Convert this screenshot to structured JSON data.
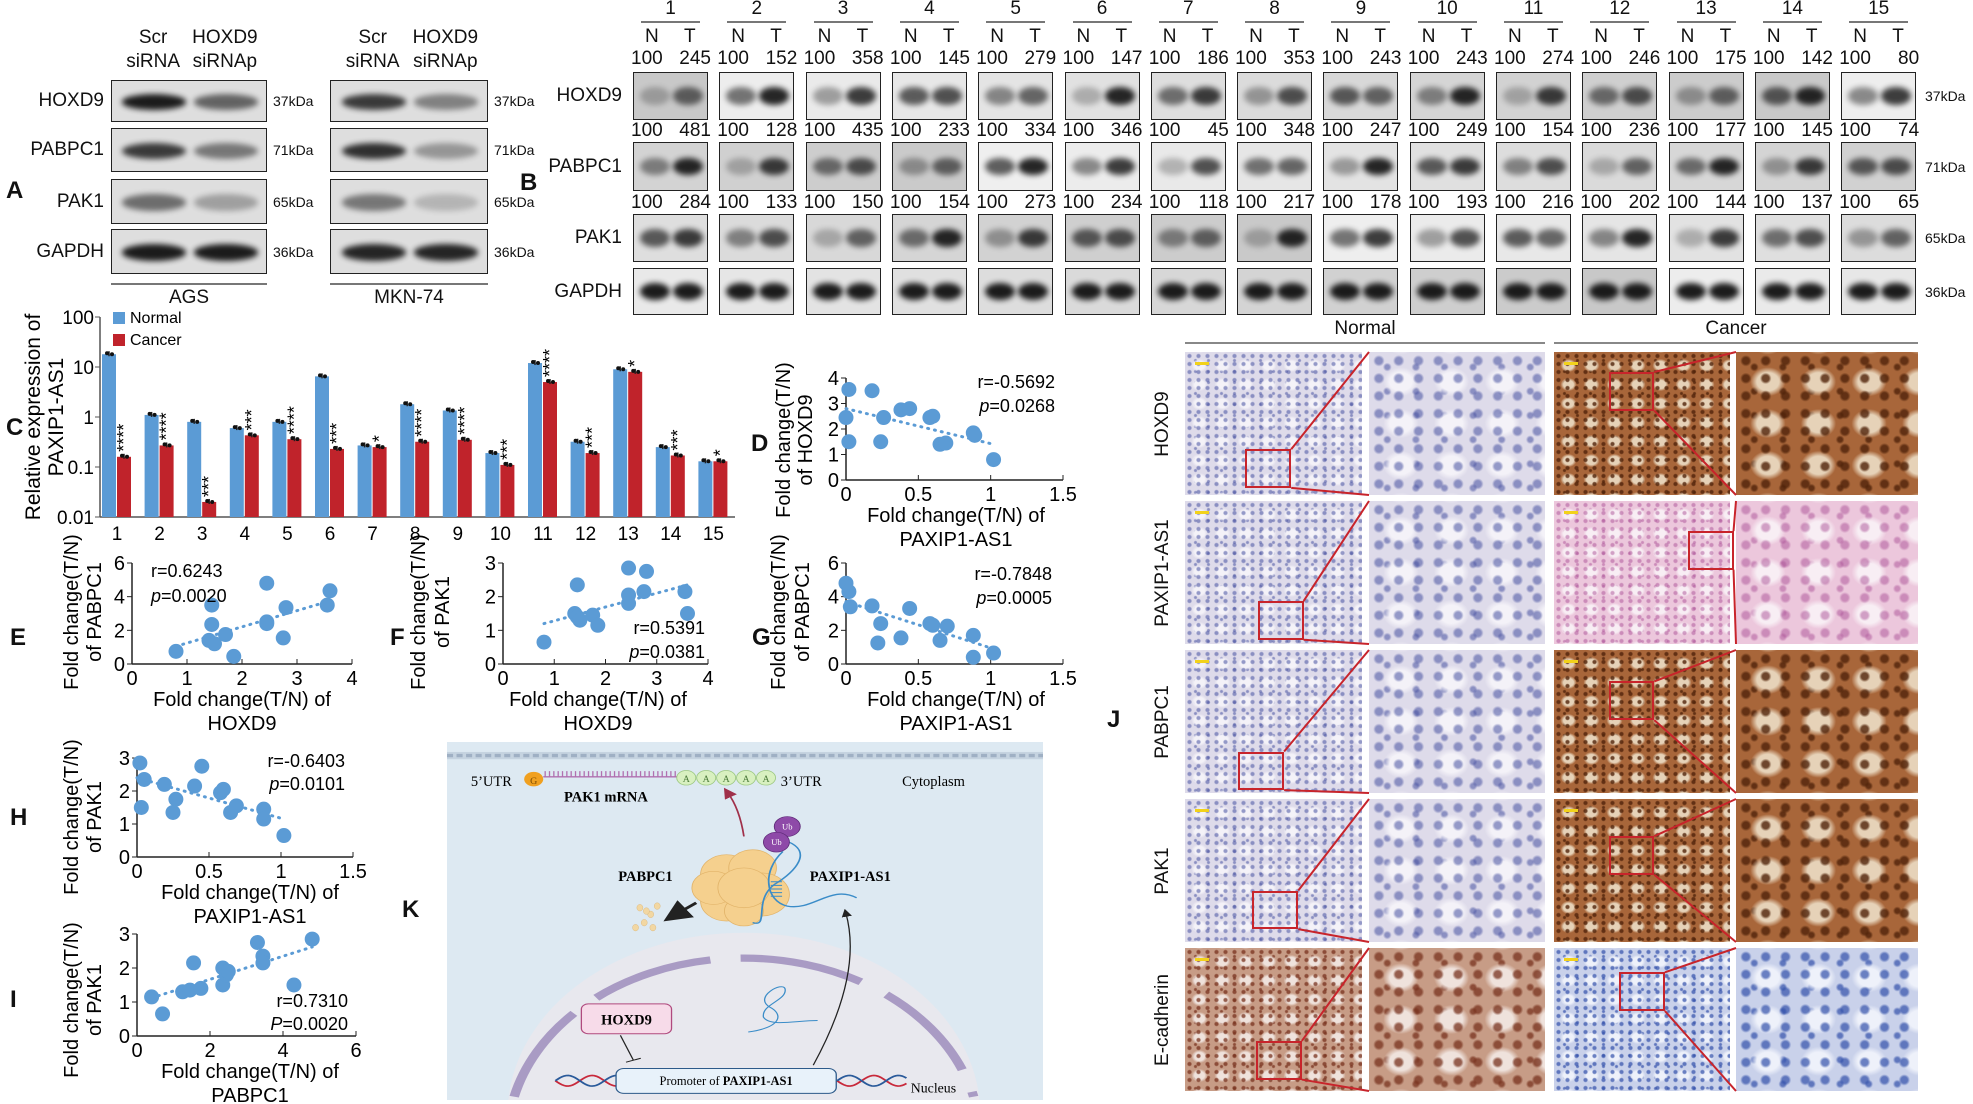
{
  "panel_letters": {
    "A": "A",
    "B": "B",
    "C": "C",
    "D": "D",
    "E": "E",
    "F": "F",
    "G": "G",
    "H": "H",
    "I": "I",
    "J": "J",
    "K": "K"
  },
  "panel_a": {
    "groups": [
      {
        "cell_line": "AGS",
        "columns": [
          {
            "line1": "Scr",
            "line2": "siRNA"
          },
          {
            "line1": "HOXD9",
            "line2": "siRNAp"
          }
        ]
      },
      {
        "cell_line": "MKN-74",
        "columns": [
          {
            "line1": "Scr",
            "line2": "siRNA"
          },
          {
            "line1": "HOXD9",
            "line2": "siRNAp"
          }
        ]
      }
    ],
    "rows": [
      {
        "label": "HOXD9",
        "kda": "37kDa"
      },
      {
        "label": "PABPC1",
        "kda": "71kDa"
      },
      {
        "label": "PAK1",
        "kda": "65kDa"
      },
      {
        "label": "GAPDH",
        "kda": "36kDa"
      }
    ]
  },
  "panel_b": {
    "lanes": [
      "1",
      "2",
      "3",
      "4",
      "5",
      "6",
      "7",
      "8",
      "9",
      "10",
      "11",
      "12",
      "13",
      "14",
      "15"
    ],
    "lane_sub": [
      "N",
      "T"
    ],
    "rows": [
      {
        "label": "HOXD9",
        "kda": "37kDa",
        "normal": "100",
        "tumor": [
          "245",
          "152",
          "358",
          "145",
          "279",
          "147",
          "186",
          "353",
          "243",
          "243",
          "274",
          "246",
          "175",
          "142",
          "80"
        ]
      },
      {
        "label": "PABPC1",
        "kda": "71kDa",
        "normal": "100",
        "tumor": [
          "481",
          "128",
          "435",
          "233",
          "334",
          "346",
          "45",
          "348",
          "247",
          "249",
          "154",
          "236",
          "177",
          "145",
          "74"
        ]
      },
      {
        "label": "PAK1",
        "kda": "65kDa",
        "normal": "100",
        "tumor": [
          "284",
          "133",
          "150",
          "154",
          "273",
          "234",
          "118",
          "217",
          "178",
          "193",
          "216",
          "202",
          "144",
          "137",
          "65"
        ]
      },
      {
        "label": "GAPDH",
        "kda": "36kDa"
      }
    ]
  },
  "chart_data": [
    {
      "panel": "C",
      "type": "bar",
      "categories": [
        "1",
        "2",
        "3",
        "4",
        "5",
        "6",
        "7",
        "8",
        "9",
        "10",
        "11",
        "12",
        "13",
        "14",
        "15"
      ],
      "series": [
        {
          "name": "Normal",
          "color": "#5b9bd5",
          "values": [
            18,
            1.1,
            0.8,
            0.6,
            0.8,
            6.5,
            0.27,
            1.8,
            1.35,
            0.19,
            12,
            0.32,
            9,
            0.25,
            0.13
          ]
        },
        {
          "name": "Cancer",
          "color": "#c0232b",
          "values": [
            0.16,
            0.27,
            0.02,
            0.43,
            0.36,
            0.23,
            0.25,
            0.32,
            0.35,
            0.11,
            5,
            0.19,
            8,
            0.17,
            0.13
          ]
        }
      ],
      "significance": [
        "****",
        "****",
        "***",
        "***",
        "****",
        "***",
        "*",
        "****",
        "****",
        "***",
        "****",
        "***",
        "*",
        "***",
        "*"
      ],
      "ylabel_lines": [
        "Relative expression of",
        "PAXIP1-AS1"
      ],
      "yscale": "log",
      "ylim": [
        0.01,
        100
      ],
      "yticks": [
        "0.01",
        "0.1",
        "1",
        "10",
        "100"
      ],
      "legend": "top-left"
    },
    {
      "panel": "D",
      "type": "scatter",
      "color": "#5b9bd5",
      "x": [
        0.02,
        0.18,
        0.0,
        0.26,
        0.38,
        0.44,
        0.58,
        0.6,
        0.02,
        0.24,
        0.65,
        0.69,
        0.88,
        0.89,
        1.02
      ],
      "y": [
        3.55,
        3.5,
        2.45,
        2.45,
        2.75,
        2.8,
        2.45,
        2.5,
        1.5,
        1.5,
        1.4,
        1.45,
        1.85,
        1.75,
        0.8
      ],
      "trendline": {
        "x": [
          0,
          1.02
        ],
        "y": [
          2.8,
          1.4
        ]
      },
      "xlim": [
        0,
        1.5
      ],
      "ylim": [
        0,
        4
      ],
      "xticks": [
        "0",
        "0.5",
        "1",
        "1.5"
      ],
      "yticks": [
        "0",
        "1",
        "2",
        "3",
        "4"
      ],
      "xlabel_lines": [
        "Fold change(T/N) of",
        "PAXIP1-AS1"
      ],
      "ylabel_lines": [
        "Fold change(T/N)",
        "of  HOXD9"
      ],
      "r": "r=-0.5692",
      "p_label": "p",
      "p_value": "=0.0268"
    },
    {
      "panel": "E",
      "type": "scatter",
      "color": "#5b9bd5",
      "x": [
        0.8,
        1.45,
        1.45,
        1.4,
        1.5,
        1.7,
        1.85,
        2.45,
        2.45,
        2.45,
        2.75,
        2.8,
        3.55,
        3.6
      ],
      "y": [
        0.75,
        3.5,
        2.35,
        1.4,
        1.2,
        1.75,
        0.45,
        4.8,
        2.5,
        2.4,
        1.55,
        3.35,
        3.5,
        4.35
      ],
      "trendline": {
        "x": [
          0.8,
          3.6
        ],
        "y": [
          1.05,
          3.75
        ]
      },
      "xlim": [
        0,
        4
      ],
      "ylim": [
        0,
        6
      ],
      "xticks": [
        "0",
        "1",
        "2",
        "3",
        "4"
      ],
      "yticks": [
        "0",
        "2",
        "4",
        "6"
      ],
      "xlabel_lines": [
        "Fold change(T/N) of",
        "HOXD9"
      ],
      "ylabel_lines": [
        "Fold change(T/N)",
        "of  PABPC1"
      ],
      "r": "r=0.6243",
      "p_label": "p",
      "p_value": "=0.0020"
    },
    {
      "panel": "F",
      "type": "scatter",
      "color": "#5b9bd5",
      "x": [
        0.8,
        1.45,
        1.4,
        1.45,
        1.5,
        1.75,
        1.85,
        2.45,
        2.45,
        2.45,
        2.75,
        2.8,
        3.55,
        3.6
      ],
      "y": [
        0.65,
        2.35,
        1.5,
        1.4,
        1.3,
        1.45,
        1.15,
        2.85,
        2.05,
        1.8,
        2.15,
        2.75,
        2.15,
        1.5
      ],
      "trendline": {
        "x": [
          0.8,
          3.6
        ],
        "y": [
          1.2,
          2.35
        ]
      },
      "xlim": [
        0,
        4
      ],
      "ylim": [
        0,
        3
      ],
      "xticks": [
        "0",
        "1",
        "2",
        "3",
        "4"
      ],
      "yticks": [
        "0",
        "1",
        "2",
        "3"
      ],
      "xlabel_lines": [
        "Fold change(T/N) of",
        "HOXD9"
      ],
      "ylabel_lines": [
        "Fold change(T/N)",
        "of  PAK1"
      ],
      "r": "r=0.5391",
      "p_label": "p",
      "p_value": "=0.0381"
    },
    {
      "panel": "G",
      "type": "scatter",
      "color": "#5b9bd5",
      "x": [
        0.0,
        0.02,
        0.03,
        0.18,
        0.24,
        0.22,
        0.38,
        0.44,
        0.58,
        0.6,
        0.65,
        0.7,
        0.88,
        0.88,
        1.02
      ],
      "y": [
        4.8,
        4.3,
        3.4,
        3.45,
        2.4,
        1.25,
        1.55,
        3.3,
        2.4,
        2.3,
        1.4,
        2.25,
        1.7,
        0.4,
        0.65
      ],
      "trendline": {
        "x": [
          0,
          1.02
        ],
        "y": [
          3.7,
          0.9
        ]
      },
      "xlim": [
        0,
        1.5
      ],
      "ylim": [
        0,
        6
      ],
      "xticks": [
        "0",
        "0.5",
        "1",
        "1.5"
      ],
      "yticks": [
        "0",
        "2",
        "4",
        "6"
      ],
      "xlabel_lines": [
        "Fold change(T/N) of",
        "PAXIP1-AS1"
      ],
      "ylabel_lines": [
        "Fold change(T/N)",
        "of  PABPC1"
      ],
      "r": "r=-0.7848",
      "p_label": "p",
      "p_value": "=0.0005"
    },
    {
      "panel": "H",
      "type": "scatter",
      "color": "#5b9bd5",
      "x": [
        0.02,
        0.05,
        0.03,
        0.19,
        0.27,
        0.25,
        0.4,
        0.45,
        0.58,
        0.6,
        0.65,
        0.69,
        0.88,
        0.88,
        1.02
      ],
      "y": [
        2.85,
        2.35,
        1.5,
        2.2,
        1.75,
        1.35,
        2.15,
        2.75,
        1.95,
        2.05,
        1.35,
        1.55,
        1.45,
        1.15,
        0.65
      ],
      "trendline": {
        "x": [
          0,
          1.02
        ],
        "y": [
          2.4,
          1.15
        ]
      },
      "xlim": [
        0,
        1.5
      ],
      "ylim": [
        0,
        3
      ],
      "xticks": [
        "0",
        "0.5",
        "1",
        "1.5"
      ],
      "yticks": [
        "0",
        "1",
        "2",
        "3"
      ],
      "xlabel_lines": [
        "Fold change(T/N) of",
        "PAXIP1-AS1"
      ],
      "ylabel_lines": [
        "Fold change(T/N)",
        "of  PAK1"
      ],
      "r": "r=-0.6403",
      "p_label": "p",
      "p_value": "=0.0101"
    },
    {
      "panel": "I",
      "type": "scatter",
      "color": "#5b9bd5",
      "x": [
        0.4,
        0.7,
        1.25,
        1.45,
        1.55,
        1.75,
        2.35,
        2.35,
        2.45,
        2.5,
        3.3,
        3.45,
        3.45,
        4.3,
        4.8
      ],
      "y": [
        1.15,
        0.65,
        1.3,
        1.35,
        2.15,
        1.4,
        1.5,
        2.0,
        1.8,
        1.9,
        2.75,
        2.35,
        2.15,
        1.5,
        2.85
      ],
      "trendline": {
        "x": [
          0.4,
          4.8
        ],
        "y": [
          1.12,
          2.62
        ]
      },
      "xlim": [
        0,
        6
      ],
      "ylim": [
        0,
        3
      ],
      "xticks": [
        "0",
        "2",
        "4",
        "6"
      ],
      "yticks": [
        "0",
        "1",
        "2",
        "3"
      ],
      "xlabel_lines": [
        "Fold change(T/N) of",
        "PABPC1"
      ],
      "ylabel_lines": [
        "Fold change(T/N)",
        "of  PAK1"
      ],
      "r": "r=0.7310",
      "p_label": "P",
      "p_value": "=0.0020"
    }
  ],
  "panel_j": {
    "groups": [
      "Normal",
      "Cancer"
    ],
    "rows": [
      "HOXD9",
      "PAXIP1-AS1",
      "PABPC1",
      "PAK1",
      "E-cadherin"
    ]
  },
  "panel_k": {
    "utr5": "5’UTR",
    "cap": "G",
    "polyA": [
      "A",
      "A",
      "A",
      "A",
      "A"
    ],
    "utr3": "3’UTR",
    "cytoplasm": "Cytoplasm",
    "mrna": "PAK1 mRNA",
    "ub": [
      "Ub",
      "Ub"
    ],
    "protein": "PABPC1",
    "lncrna": "PAXIP1-AS1",
    "tf": "HOXD9",
    "promoter_prefix": "Promoter of ",
    "promoter_gene": "PAXIP1-AS1",
    "nucleus": "Nucleus"
  }
}
